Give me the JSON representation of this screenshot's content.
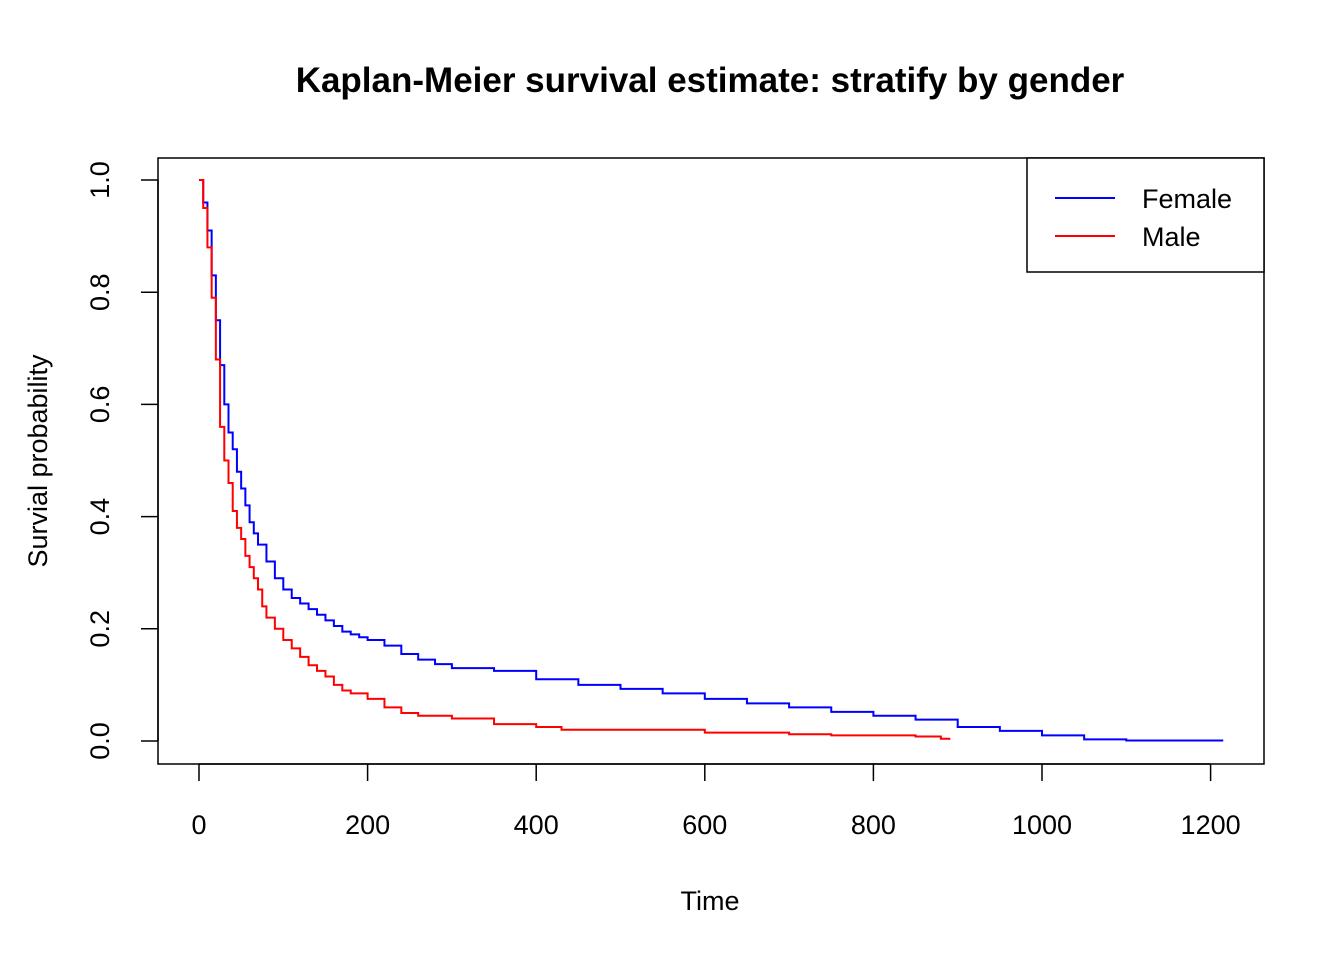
{
  "chart_data": {
    "type": "line",
    "title": "Kaplan-Meier survival estimate: stratify by gender",
    "xlabel": "Time",
    "ylabel": "Survial probability",
    "xlim": [
      0,
      1220
    ],
    "ylim": [
      0,
      1.0
    ],
    "xticks": [
      "0",
      "200",
      "400",
      "600",
      "800",
      "1000",
      "1200"
    ],
    "yticks": [
      "0.0",
      "0.2",
      "0.4",
      "0.6",
      "0.8",
      "1.0"
    ],
    "grid": false,
    "step": true,
    "legend": {
      "position": "top-right",
      "entries": [
        "Female",
        "Male"
      ]
    },
    "series": [
      {
        "name": "Female",
        "color": "#0000ff",
        "x": [
          0,
          5,
          10,
          15,
          20,
          25,
          30,
          35,
          40,
          45,
          50,
          55,
          60,
          65,
          70,
          80,
          90,
          100,
          110,
          120,
          130,
          140,
          150,
          160,
          170,
          180,
          190,
          200,
          220,
          240,
          260,
          280,
          300,
          350,
          400,
          450,
          500,
          550,
          600,
          650,
          700,
          750,
          800,
          850,
          900,
          950,
          1000,
          1050,
          1100,
          1150,
          1215
        ],
        "y": [
          1.0,
          0.96,
          0.91,
          0.83,
          0.75,
          0.67,
          0.6,
          0.55,
          0.52,
          0.48,
          0.45,
          0.42,
          0.39,
          0.37,
          0.35,
          0.32,
          0.29,
          0.27,
          0.255,
          0.245,
          0.235,
          0.225,
          0.215,
          0.205,
          0.195,
          0.19,
          0.185,
          0.18,
          0.17,
          0.155,
          0.145,
          0.137,
          0.13,
          0.125,
          0.11,
          0.1,
          0.093,
          0.085,
          0.075,
          0.067,
          0.06,
          0.052,
          0.045,
          0.038,
          0.025,
          0.018,
          0.01,
          0.003,
          0.001,
          0.001,
          0.001
        ]
      },
      {
        "name": "Male",
        "color": "#ff0000",
        "x": [
          0,
          5,
          10,
          15,
          20,
          25,
          30,
          35,
          40,
          45,
          50,
          55,
          60,
          65,
          70,
          75,
          80,
          90,
          100,
          110,
          120,
          130,
          140,
          150,
          160,
          170,
          180,
          200,
          220,
          240,
          260,
          300,
          350,
          400,
          430,
          500,
          550,
          600,
          650,
          700,
          750,
          800,
          850,
          880,
          890
        ],
        "y": [
          1.0,
          0.95,
          0.88,
          0.79,
          0.68,
          0.56,
          0.5,
          0.46,
          0.41,
          0.38,
          0.36,
          0.33,
          0.31,
          0.29,
          0.27,
          0.24,
          0.22,
          0.2,
          0.18,
          0.165,
          0.15,
          0.135,
          0.125,
          0.115,
          0.1,
          0.09,
          0.085,
          0.075,
          0.06,
          0.05,
          0.045,
          0.04,
          0.03,
          0.025,
          0.02,
          0.02,
          0.02,
          0.015,
          0.015,
          0.012,
          0.01,
          0.01,
          0.008,
          0.004,
          0.002
        ]
      }
    ]
  }
}
